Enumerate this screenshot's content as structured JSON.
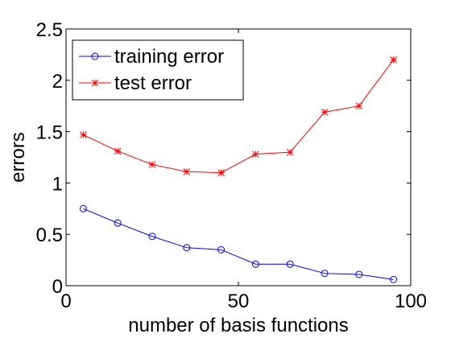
{
  "chart_data": {
    "type": "line",
    "xlabel": "number of basis functions",
    "ylabel": "errors",
    "xlim": [
      0,
      100
    ],
    "ylim": [
      0,
      2.5
    ],
    "xticks": [
      0,
      50,
      100
    ],
    "xtick_labels": [
      "0",
      "50",
      "100"
    ],
    "yticks": [
      0,
      0.5,
      1,
      1.5,
      2,
      2.5
    ],
    "ytick_labels": [
      "0",
      "0.5",
      "1",
      "1.5",
      "2",
      "2.5"
    ],
    "grid": false,
    "legend_position": "top-left",
    "x": [
      5,
      15,
      25,
      35,
      45,
      55,
      65,
      75,
      85,
      95
    ],
    "series": [
      {
        "name": "training error",
        "color": "#0000ff",
        "marker": "circle",
        "values": [
          0.75,
          0.61,
          0.48,
          0.37,
          0.35,
          0.21,
          0.21,
          0.12,
          0.11,
          0.06
        ]
      },
      {
        "name": "test error",
        "color": "#ff0000",
        "marker": "star",
        "values": [
          1.47,
          1.31,
          1.18,
          1.11,
          1.1,
          1.28,
          1.3,
          1.69,
          1.75,
          2.2
        ]
      }
    ]
  }
}
